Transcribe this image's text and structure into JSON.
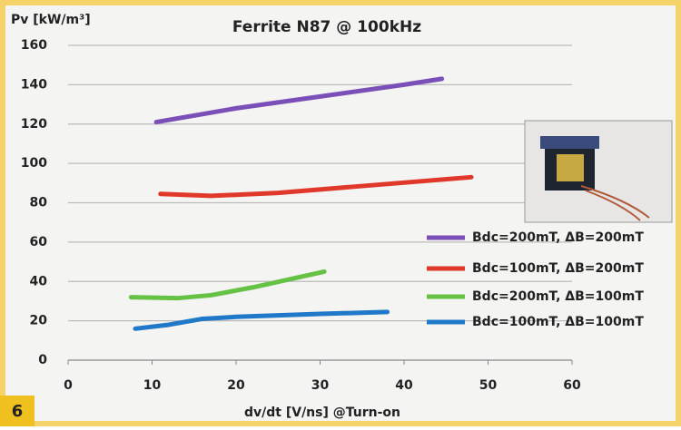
{
  "chart_data": {
    "type": "line",
    "title": "Ferrite N87 @ 100kHz",
    "y_label": "Pv [kW/m³]",
    "x_label": "dv/dt [V/ns] @Turn-on",
    "figure_label": "6",
    "xlim": [
      0,
      60
    ],
    "xticks": [
      0,
      10,
      20,
      30,
      40,
      50,
      60
    ],
    "ylim": [
      0,
      160
    ],
    "yticks": [
      0,
      20,
      40,
      60,
      80,
      100,
      120,
      140,
      160
    ],
    "grid": true,
    "legend": "lower-right",
    "series": [
      {
        "name": "Bdc=200mT, ΔB=200mT",
        "color": "#7b4fb8",
        "x": [
          10.5,
          20,
          30,
          40,
          44.5
        ],
        "values": [
          121,
          128,
          134,
          140,
          143
        ]
      },
      {
        "name": "Bdc=100mT, ΔB=200mT",
        "color": "#e0392b",
        "x": [
          11,
          17,
          25,
          35,
          48
        ],
        "values": [
          84.5,
          83.5,
          85,
          88.5,
          93
        ]
      },
      {
        "name": "Bdc=200mT, ΔB=100mT",
        "color": "#66c244",
        "x": [
          7.5,
          13,
          17,
          22,
          30.5
        ],
        "values": [
          32,
          31.5,
          33,
          37,
          45
        ]
      },
      {
        "name": "Bdc=100mT, ΔB=100mT",
        "color": "#1f78c8",
        "x": [
          8,
          12,
          16,
          20,
          30,
          38
        ],
        "values": [
          16,
          18,
          21,
          22,
          23.5,
          24.5
        ]
      }
    ]
  }
}
